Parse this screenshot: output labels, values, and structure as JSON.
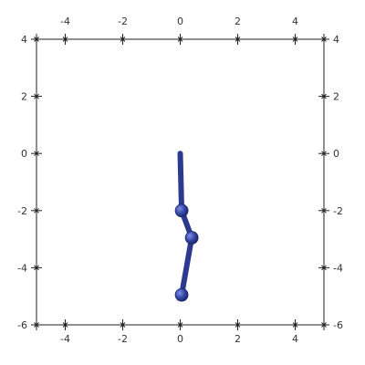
{
  "chart_data": {
    "type": "line",
    "title": "",
    "xlabel": "",
    "ylabel": "",
    "xlim": [
      -5,
      5
    ],
    "ylim": [
      -6,
      4
    ],
    "xticks": [
      -4,
      -2,
      0,
      2,
      4
    ],
    "yticks": [
      -6,
      -4,
      -2,
      0,
      2,
      4
    ],
    "x_tick_labels": [
      "-4",
      "-2",
      "0",
      "2",
      "4"
    ],
    "y_tick_labels": [
      "-6",
      "-4",
      "-2",
      "0",
      "2",
      "4"
    ],
    "grid": false,
    "series": [
      {
        "color": "#2b3a8f",
        "joint_color": "#3347a8",
        "points": [
          {
            "x": 0,
            "y": 0,
            "joint": false
          },
          {
            "x": 0.05,
            "y": -2,
            "joint": true
          },
          {
            "x": 0.4,
            "y": -2.95,
            "joint": true
          },
          {
            "x": 0.05,
            "y": -4.95,
            "joint": true
          }
        ]
      }
    ]
  }
}
